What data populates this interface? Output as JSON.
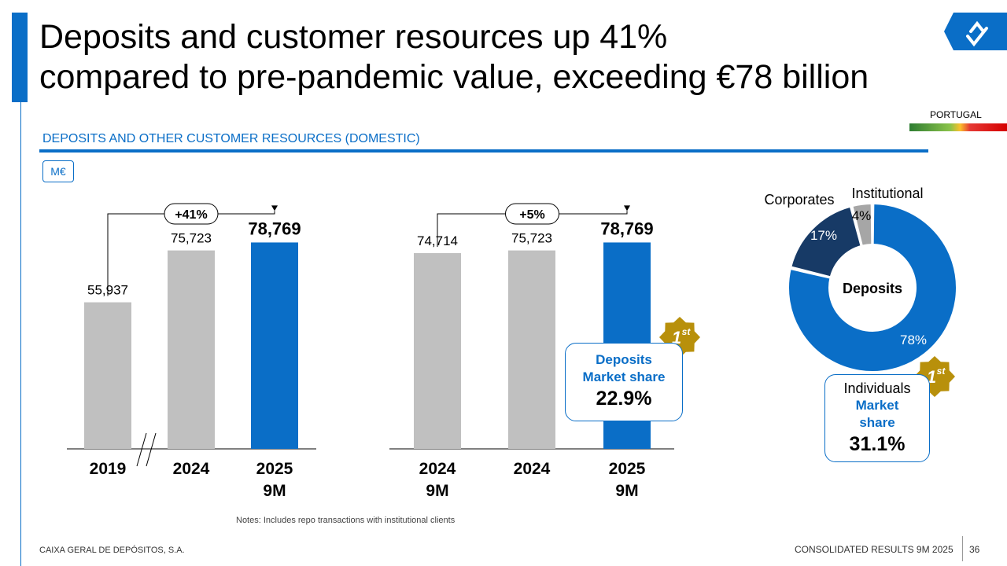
{
  "title": {
    "line1": "Deposits and customer resources up 41%",
    "line2": "compared to pre-pandemic value, exceeding €78 billion"
  },
  "country": "PORTUGAL",
  "section_title": "DEPOSITS AND OTHER CUSTOMER RESOURCES (DOMESTIC)",
  "unit": "M€",
  "colors": {
    "accent": "#0a6ec7",
    "grey_bar": "#c0c0c0",
    "navy": "#173a66",
    "gold": "#b8900b",
    "grey_slice": "#a6a6a6"
  },
  "chart_data": [
    {
      "type": "bar",
      "title": "",
      "categories": [
        "2019",
        "2024",
        "2025 9M"
      ],
      "values": [
        55937,
        75723,
        78769
      ],
      "value_labels": [
        "55,937",
        "75,723",
        "78,769"
      ],
      "highlight_index": 2,
      "ylim": [
        0,
        90000
      ],
      "annotation": {
        "text": "+41%",
        "from": 0,
        "to": 2
      },
      "axis_break_between": [
        0,
        1
      ]
    },
    {
      "type": "bar",
      "title": "",
      "categories": [
        "2024 9M",
        "2024",
        "2025 9M"
      ],
      "values": [
        74714,
        75723,
        78769
      ],
      "value_labels": [
        "74,714",
        "75,723",
        "78,769"
      ],
      "highlight_index": 2,
      "ylim": [
        0,
        90000
      ],
      "annotation": {
        "text": "+5%",
        "from": 0,
        "to": 2
      }
    },
    {
      "type": "pie",
      "title": "Deposits",
      "labels": [
        "Individuals",
        "Corporates",
        "Institutional"
      ],
      "values": [
        78,
        17,
        4
      ],
      "value_labels": [
        "78%",
        "17%",
        "4%"
      ]
    }
  ],
  "callouts": {
    "deposits": {
      "badge": "1",
      "badge_sup": "st",
      "line1": "Deposits",
      "line2": "Market share",
      "value": "22.9%"
    },
    "individuals": {
      "badge": "1",
      "badge_sup": "st",
      "line0": "Individuals",
      "line1": "Market",
      "line2": "share",
      "value": "31.1%"
    }
  },
  "notes": "Notes: Includes repo transactions with institutional clients",
  "footer": {
    "left": "CAIXA GERAL DE DEPÓSITOS, S.A.",
    "right": "CONSOLIDATED RESULTS 9M 2025",
    "page": "36"
  }
}
